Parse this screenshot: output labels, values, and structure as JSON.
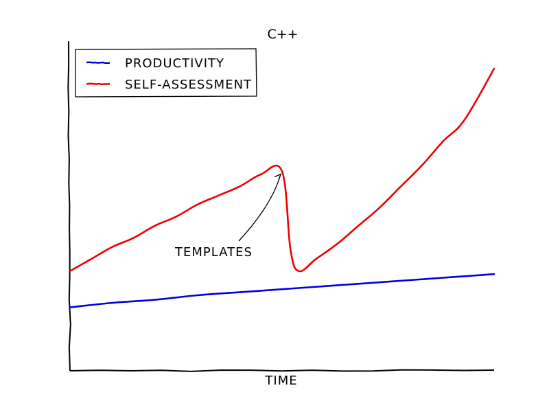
{
  "chart_data": {
    "type": "line",
    "title": "C++",
    "xlabel": "TIME",
    "ylabel": "",
    "xlim": [
      0,
      100
    ],
    "ylim": [
      0,
      100
    ],
    "grid": false,
    "legend_position": "top-left",
    "series": [
      {
        "name": "PRODUCTIVITY",
        "color": "#0000dd",
        "x": [
          0,
          10,
          20,
          30,
          40,
          50,
          60,
          70,
          80,
          90,
          100
        ],
        "y": [
          21,
          22.5,
          23.5,
          25,
          26,
          27,
          28,
          29,
          30,
          31,
          32
        ]
      },
      {
        "name": "SELF-ASSESSMENT",
        "color": "#ee0000",
        "x": [
          0,
          5,
          10,
          15,
          20,
          25,
          30,
          35,
          40,
          45,
          50,
          52,
          54,
          58,
          63,
          68,
          73,
          78,
          83,
          88,
          93,
          100
        ],
        "y": [
          33,
          37,
          41,
          44,
          48,
          51,
          55,
          58,
          61,
          65,
          66,
          40,
          33,
          37,
          42,
          48,
          54,
          61,
          68,
          76,
          83,
          100
        ]
      }
    ],
    "annotations": [
      {
        "text": "TEMPLATES",
        "point": {
          "x": 50,
          "y": 66
        }
      }
    ]
  }
}
